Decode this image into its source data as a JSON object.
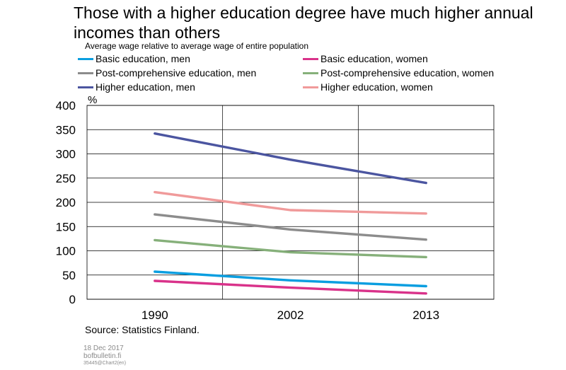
{
  "header": {
    "title": "Those with a higher education degree have much higher annual incomes than others",
    "subtitle": "Average wage relative to average wage of entire population"
  },
  "chart_data": {
    "type": "line",
    "x": [
      "1990",
      "2002",
      "2013"
    ],
    "ylabel": "%",
    "ylim": [
      0,
      400
    ],
    "yticks": [
      "0",
      "50",
      "100",
      "150",
      "200",
      "250",
      "300",
      "350",
      "400"
    ],
    "grid": true,
    "legend_position": "top",
    "series": [
      {
        "name": "Basic education, men",
        "color": "#0a9ee0",
        "values": [
          57,
          39,
          27
        ]
      },
      {
        "name": "Basic education, women",
        "color": "#d9328a",
        "values": [
          38,
          24,
          12
        ]
      },
      {
        "name": "Post-comprehensive education, men",
        "color": "#8c8c8c",
        "values": [
          175,
          144,
          123
        ]
      },
      {
        "name": "Post-comprehensive education, women",
        "color": "#86b07a",
        "values": [
          122,
          97,
          87
        ]
      },
      {
        "name": "Higher education, men",
        "color": "#4b55a0",
        "values": [
          342,
          288,
          240
        ]
      },
      {
        "name": "Higher education, women",
        "color": "#f09a9a",
        "values": [
          221,
          184,
          177
        ]
      }
    ]
  },
  "footer": {
    "source": "Source: Statistics Finland.",
    "date": "18 Dec 2017",
    "site": "bofbulletin.fi",
    "code": "35445@Chart2(en)"
  }
}
